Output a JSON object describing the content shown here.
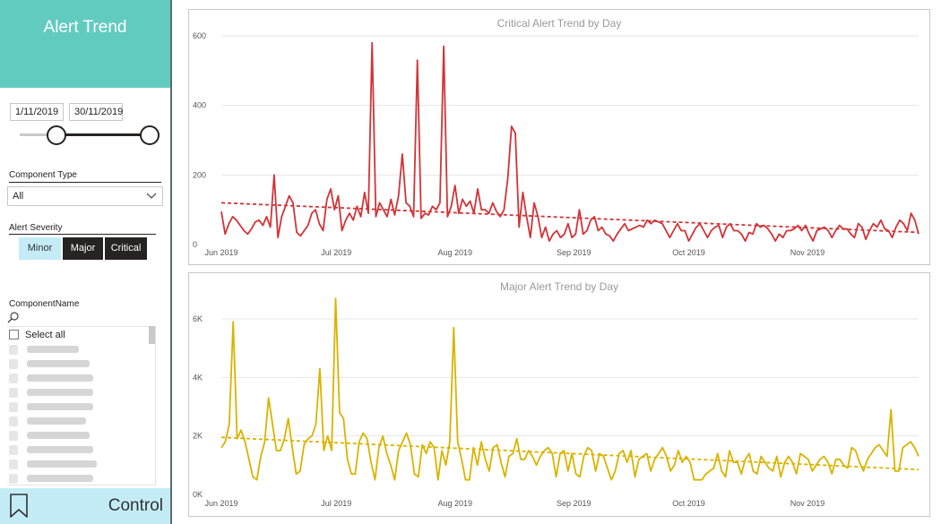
{
  "sidebar": {
    "title": "Alert Trend",
    "date_start": "1/11/2019",
    "date_end": "30/11/2019",
    "component_type": {
      "label": "Component Type",
      "selected": "All"
    },
    "alert_severity": {
      "label": "Alert Severity",
      "buttons": [
        {
          "label": "Minor",
          "selected": true
        },
        {
          "label": "Major",
          "selected": false
        },
        {
          "label": "Critical",
          "selected": false
        }
      ]
    },
    "component_name": {
      "label": "ComponentName",
      "select_all": "Select all"
    },
    "footer_label": "Control",
    "icons": [
      "search-icon",
      "chevron-down-icon",
      "bookmark-icon",
      "checkbox-icon"
    ]
  },
  "chart_data": [
    {
      "type": "line",
      "title": "Critical Alert Trend by Day",
      "color": "#d13438",
      "x_start": "2019-06-01",
      "x_end": "2019-11-30",
      "xticks": [
        {
          "label": "Jun 2019",
          "date": "2019-06-01"
        },
        {
          "label": "Jul 2019",
          "date": "2019-07-01"
        },
        {
          "label": "Aug 2019",
          "date": "2019-08-01"
        },
        {
          "label": "Sep 2019",
          "date": "2019-09-01"
        },
        {
          "label": "Oct 2019",
          "date": "2019-10-01"
        },
        {
          "label": "Nov 2019",
          "date": "2019-11-01"
        }
      ],
      "yticks": [
        {
          "label": "0",
          "value": 0
        },
        {
          "label": "200",
          "value": 200
        },
        {
          "label": "400",
          "value": 400
        },
        {
          "label": "600",
          "value": 600
        }
      ],
      "ylim": [
        0,
        600
      ],
      "trend": {
        "start": 120,
        "end": 35
      },
      "series": [
        {
          "values": [
            95,
            30,
            60,
            80,
            70,
            55,
            40,
            30,
            45,
            65,
            70,
            55,
            80,
            50,
            200,
            20,
            80,
            110,
            140,
            120,
            35,
            25,
            40,
            55,
            90,
            100,
            60,
            40,
            130,
            160,
            100,
            140,
            40,
            70,
            90,
            70,
            110,
            80,
            150,
            90,
            580,
            80,
            120,
            100,
            80,
            130,
            85,
            140,
            260,
            120,
            110,
            80,
            530,
            75,
            90,
            85,
            110,
            100,
            120,
            570,
            80,
            110,
            170,
            90,
            130,
            110,
            125,
            90,
            160,
            100,
            100,
            90,
            120,
            95,
            80,
            100,
            190,
            340,
            320,
            50,
            150,
            80,
            20,
            120,
            80,
            20,
            50,
            10,
            30,
            40,
            20,
            30,
            60,
            20,
            30,
            100,
            30,
            40,
            70,
            80,
            40,
            50,
            30,
            25,
            10,
            30,
            45,
            60,
            40,
            45,
            50,
            55,
            50,
            70,
            60,
            70,
            65,
            60,
            40,
            20,
            40,
            60,
            40,
            40,
            10,
            30,
            50,
            60,
            40,
            20,
            40,
            50,
            55,
            20,
            50,
            60,
            40,
            40,
            30,
            10,
            35,
            30,
            60,
            50,
            55,
            45,
            30,
            10,
            30,
            20,
            40,
            40,
            45,
            55,
            40,
            55,
            30,
            10,
            40,
            45,
            50,
            40,
            20,
            40,
            55,
            45,
            45,
            30,
            20,
            60,
            50,
            15,
            40,
            60,
            50,
            70,
            45,
            40,
            20,
            50,
            70,
            60,
            40,
            90,
            70,
            30
          ]
        }
      ]
    },
    {
      "type": "line",
      "title": "Major Alert Trend by Day",
      "color": "#d9b300",
      "x_start": "2019-06-01",
      "x_end": "2019-11-30",
      "xticks": [
        {
          "label": "Jun 2019",
          "date": "2019-06-01"
        },
        {
          "label": "Jul 2019",
          "date": "2019-07-01"
        },
        {
          "label": "Aug 2019",
          "date": "2019-08-01"
        },
        {
          "label": "Sep 2019",
          "date": "2019-09-01"
        },
        {
          "label": "Oct 2019",
          "date": "2019-10-01"
        },
        {
          "label": "Nov 2019",
          "date": "2019-11-01"
        }
      ],
      "yticks": [
        {
          "label": "0K",
          "value": 0
        },
        {
          "label": "2K",
          "value": 2000
        },
        {
          "label": "4K",
          "value": 4000
        },
        {
          "label": "6K",
          "value": 6000
        }
      ],
      "ylim": [
        0,
        6000
      ],
      "trend": {
        "start": 1950,
        "end": 850
      },
      "series": [
        {
          "values": [
            1600,
            1800,
            2400,
            5900,
            1900,
            2200,
            1800,
            1200,
            600,
            500,
            1300,
            1800,
            3300,
            2400,
            1500,
            1500,
            1900,
            2600,
            1600,
            700,
            800,
            1700,
            1900,
            2000,
            2400,
            4300,
            1500,
            2000,
            1500,
            6700,
            2800,
            2600,
            1200,
            700,
            700,
            1800,
            2100,
            1900,
            1100,
            500,
            1600,
            2000,
            1400,
            1000,
            500,
            1500,
            1800,
            2100,
            1700,
            700,
            600,
            1700,
            1400,
            1800,
            1600,
            500,
            1500,
            1000,
            1800,
            5700,
            1800,
            1200,
            500,
            500,
            1600,
            1000,
            1800,
            1200,
            800,
            1600,
            1700,
            1100,
            600,
            1300,
            1400,
            1900,
            1200,
            1200,
            1500,
            1300,
            1000,
            1300,
            1500,
            1600,
            1400,
            600,
            1400,
            1500,
            800,
            1400,
            700,
            600,
            1300,
            1600,
            1500,
            800,
            1400,
            1300,
            900,
            500,
            800,
            1400,
            1500,
            1100,
            1500,
            600,
            1200,
            1300,
            1400,
            800,
            1200,
            1400,
            1600,
            1300,
            800,
            1000,
            1500,
            1100,
            1300,
            1100,
            500,
            500,
            500,
            700,
            800,
            900,
            1400,
            800,
            600,
            1500,
            1100,
            1100,
            700,
            1200,
            1400,
            800,
            700,
            1300,
            1100,
            900,
            800,
            1300,
            600,
            1100,
            1300,
            1100,
            700,
            1400,
            1300,
            1200,
            800,
            1000,
            1200,
            1300,
            1100,
            700,
            1200,
            1200,
            1000,
            900,
            1600,
            1500,
            1100,
            800,
            1200,
            1400,
            1600,
            1700,
            1500,
            1300,
            2900,
            800,
            800,
            1600,
            1700,
            1800,
            1600,
            1300
          ]
        }
      ]
    }
  ]
}
